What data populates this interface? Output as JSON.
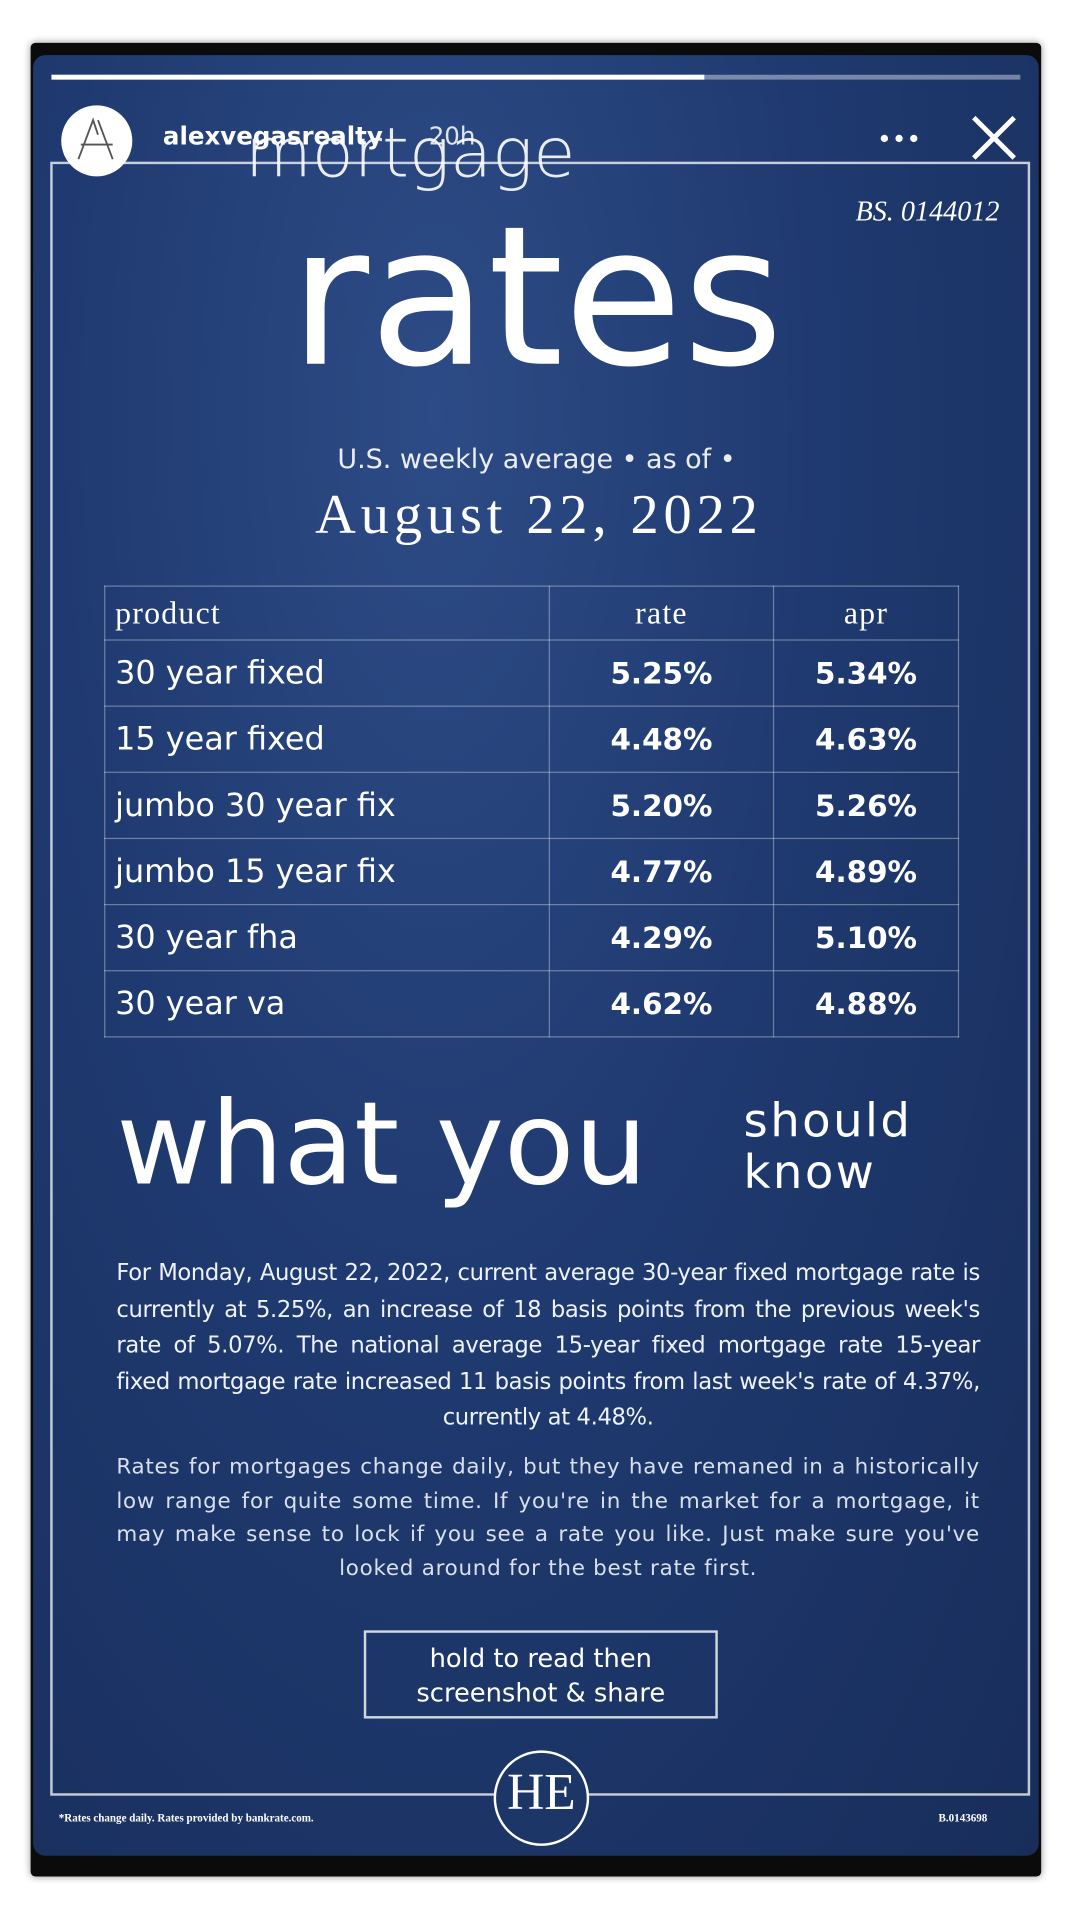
{
  "header": {
    "username": "alexvegasrealty",
    "time": "20h"
  },
  "poster": {
    "license": "BS. 0144012",
    "title_top": "mortgage",
    "title_main": "rates",
    "subtitle": "U.S. weekly average • as of •",
    "date": "August 22, 2022",
    "table": {
      "header": [
        "product",
        "rate",
        "apr"
      ],
      "rows": [
        [
          "30 year fixed",
          "5.25%",
          "5.34%"
        ],
        [
          "15 year fixed",
          "4.48%",
          "4.63%"
        ],
        [
          "jumbo 30 year fix",
          "5.20%",
          "5.26%"
        ],
        [
          "jumbo 15 year fix",
          "4.77%",
          "4.89%"
        ],
        [
          "30 year fha",
          "4.29%",
          "5.10%"
        ],
        [
          "30 year va",
          "4.62%",
          "4.88%"
        ]
      ]
    },
    "heading": "what you",
    "heading_small": [
      "should",
      "know"
    ],
    "paragraphs": [
      "For Monday, August 22, 2022, current average 30-year fixed mortgage rate is currently at 5.25%, an increase of 18 basis points from the previous week's rate of 5.07%. The national average 15-year fixed mortgage rate 15-year fixed mortgage rate increased 11 basis points from last week's rate of 4.37%, currently at 4.48%.",
      "Rates for mortgages change daily, but they have remaned in a historically low range for quite some time. If you're in the market for a mortgage, it may make sense to lock if you see a rate you like. Just make sure you've looked around for the best rate first."
    ],
    "cta": [
      "hold to read then",
      "screenshot & share"
    ],
    "logo": "HE",
    "footer_note": "*Rates change daily. Rates provided by bankrate.com.",
    "footer_id": "B.0143698"
  }
}
